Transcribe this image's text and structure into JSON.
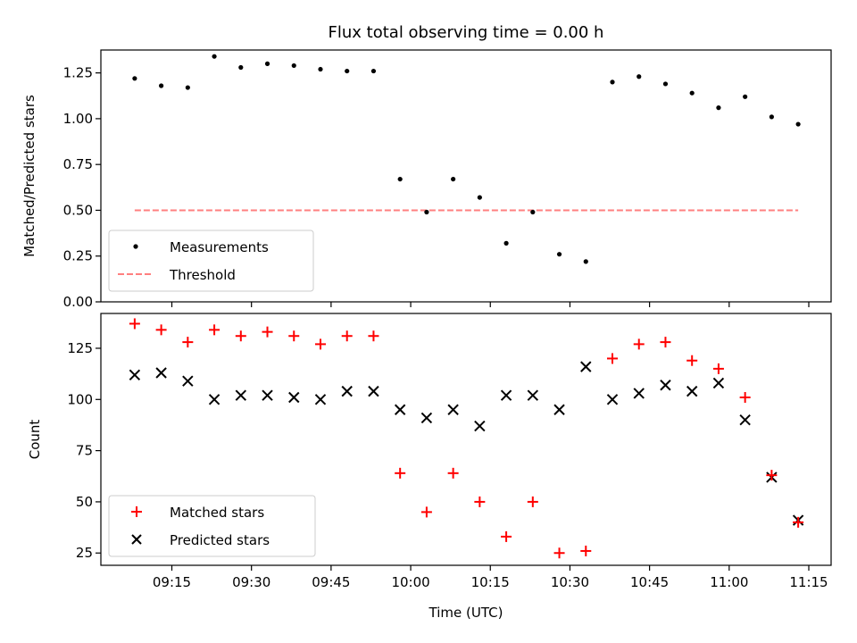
{
  "title": "Flux total observing time = 0.00 h",
  "xlabel": "Time (UTC)",
  "x_tick_labels": [
    "09:15",
    "09:30",
    "09:45",
    "10:00",
    "10:15",
    "10:30",
    "10:45",
    "11:00",
    "11:15"
  ],
  "colors": {
    "measurements": "#000000",
    "threshold": "#ff7f7f",
    "matched": "#ff0000",
    "predicted": "#000000"
  },
  "chart_data": [
    {
      "type": "scatter",
      "ylabel": "Matched/Predicted stars",
      "ylim": [
        0,
        1.375
      ],
      "yticks": [
        0.0,
        0.25,
        0.5,
        0.75,
        1.0,
        1.25
      ],
      "ytick_labels": [
        "0.00",
        "0.25",
        "0.50",
        "0.75",
        "1.00",
        "1.25"
      ],
      "x": [
        "09:08",
        "09:13",
        "09:18",
        "09:23",
        "09:28",
        "09:33",
        "09:38",
        "09:43",
        "09:48",
        "09:53",
        "09:58",
        "10:03",
        "10:08",
        "10:13",
        "10:18",
        "10:23",
        "10:28",
        "10:33",
        "10:38",
        "10:43",
        "10:48",
        "10:53",
        "10:58",
        "11:03",
        "11:08",
        "11:13"
      ],
      "series": [
        {
          "name": "Measurements",
          "values": [
            1.22,
            1.18,
            1.17,
            1.34,
            1.28,
            1.3,
            1.29,
            1.27,
            1.26,
            1.26,
            0.67,
            0.49,
            0.67,
            0.57,
            0.32,
            0.49,
            0.26,
            0.22,
            1.2,
            1.23,
            1.19,
            1.14,
            1.06,
            1.12,
            1.01,
            0.97
          ]
        },
        {
          "name": "Threshold",
          "kind": "line",
          "x": [
            "09:08",
            "11:13"
          ],
          "values": [
            0.5,
            0.5
          ]
        }
      ],
      "legend": "lower-left",
      "grid": false
    },
    {
      "type": "scatter",
      "ylabel": "Count",
      "ylim": [
        19,
        142
      ],
      "yticks": [
        25,
        50,
        75,
        100,
        125
      ],
      "ytick_labels": [
        "25",
        "50",
        "75",
        "100",
        "125"
      ],
      "x": [
        "09:08",
        "09:13",
        "09:18",
        "09:23",
        "09:28",
        "09:33",
        "09:38",
        "09:43",
        "09:48",
        "09:53",
        "09:58",
        "10:03",
        "10:08",
        "10:13",
        "10:18",
        "10:23",
        "10:28",
        "10:33",
        "10:38",
        "10:43",
        "10:48",
        "10:53",
        "10:58",
        "11:03",
        "11:08",
        "11:13"
      ],
      "series": [
        {
          "name": "Matched stars",
          "marker": "+",
          "values": [
            137,
            134,
            128,
            134,
            131,
            133,
            131,
            127,
            131,
            131,
            64,
            45,
            64,
            50,
            33,
            50,
            25,
            26,
            120,
            127,
            128,
            119,
            115,
            101,
            63,
            40
          ]
        },
        {
          "name": "Predicted stars",
          "marker": "x",
          "values": [
            112,
            113,
            109,
            100,
            102,
            102,
            101,
            100,
            104,
            104,
            95,
            91,
            95,
            87,
            102,
            102,
            95,
            116,
            100,
            103,
            107,
            104,
            108,
            90,
            62,
            41
          ]
        }
      ],
      "legend": "lower-left",
      "grid": false
    }
  ]
}
